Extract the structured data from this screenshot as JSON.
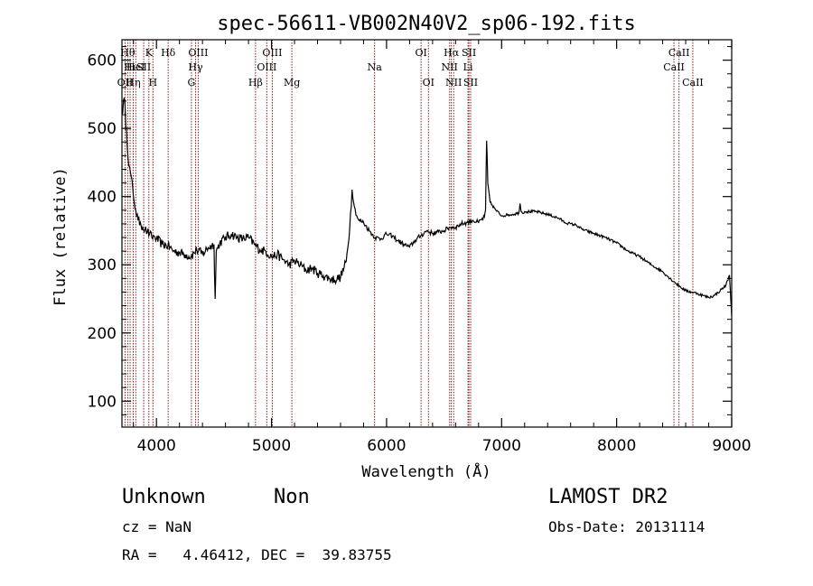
{
  "chart_data": {
    "type": "line",
    "title": "spec-56611-VB002N40V2_sp06-192.fits",
    "xlabel": "Wavelength (Å)",
    "ylabel": "Flux (relative)",
    "xlim": [
      3700,
      9000
    ],
    "ylim": [
      62,
      630
    ],
    "xticks": [
      4000,
      5000,
      6000,
      7000,
      8000,
      9000
    ],
    "yticks": [
      100,
      200,
      300,
      400,
      500,
      600
    ],
    "series": [
      {
        "x": [
          3700,
          3720,
          3740,
          3760,
          3780,
          3800,
          3820,
          3840,
          3860,
          3880,
          3900,
          3920,
          3940,
          3960,
          3980,
          4000,
          4050,
          4100,
          4150,
          4200,
          4250,
          4300,
          4350,
          4400,
          4450,
          4500,
          4510,
          4520,
          4550,
          4600,
          4650,
          4700,
          4750,
          4800,
          4850,
          4900,
          4950,
          5000,
          5050,
          5100,
          5150,
          5200,
          5250,
          5300,
          5350,
          5400,
          5450,
          5500,
          5550,
          5600,
          5650,
          5680,
          5700,
          5720,
          5740,
          5760,
          5800,
          5850,
          5900,
          5950,
          6000,
          6050,
          6100,
          6150,
          6200,
          6250,
          6300,
          6350,
          6400,
          6450,
          6500,
          6550,
          6600,
          6650,
          6700,
          6750,
          6800,
          6850,
          6860,
          6870,
          6880,
          6900,
          6950,
          7000,
          7050,
          7100,
          7150,
          7160,
          7170,
          7180,
          7200,
          7300,
          7400,
          7500,
          7550,
          7600,
          7650,
          7700,
          7800,
          7900,
          8000,
          8100,
          8200,
          8300,
          8400,
          8450,
          8500,
          8550,
          8600,
          8650,
          8700,
          8750,
          8800,
          8850,
          8900,
          8950,
          8980,
          9000
        ],
        "y": [
          520,
          545,
          495,
          445,
          430,
          400,
          380,
          365,
          362,
          355,
          352,
          348,
          345,
          340,
          342,
          338,
          330,
          328,
          320,
          318,
          315,
          312,
          322,
          316,
          325,
          330,
          250,
          320,
          332,
          340,
          345,
          340,
          338,
          340,
          330,
          322,
          320,
          312,
          315,
          308,
          300,
          306,
          300,
          292,
          295,
          288,
          284,
          280,
          278,
          282,
          305,
          355,
          410,
          385,
          372,
          365,
          362,
          350,
          340,
          338,
          345,
          342,
          335,
          330,
          326,
          336,
          343,
          350,
          346,
          348,
          350,
          355,
          355,
          360,
          362,
          365,
          362,
          370,
          380,
          482,
          420,
          392,
          380,
          372,
          373,
          374,
          376,
          390,
          378,
          376,
          378,
          378,
          374,
          368,
          362,
          360,
          358,
          352,
          346,
          340,
          332,
          320,
          312,
          300,
          290,
          282,
          275,
          268,
          262,
          260,
          258,
          255,
          252,
          255,
          262,
          270,
          285,
          225
        ]
      }
    ],
    "lines": [
      {
        "wl": 3727,
        "label": "OII",
        "row": 3
      },
      {
        "wl": 3750,
        "label": "Hθ",
        "row": 1
      },
      {
        "wl": 3771,
        "label": "Hι",
        "row": 2
      },
      {
        "wl": 3798,
        "label": "Hη",
        "row": 3
      },
      {
        "wl": 3820,
        "label": "HeI",
        "row": 2
      },
      {
        "wl": 3889,
        "label": "SII",
        "row": 2
      },
      {
        "wl": 3934,
        "label": "K",
        "row": 1
      },
      {
        "wl": 3969,
        "label": "H",
        "row": 3
      },
      {
        "wl": 4102,
        "label": "Hδ",
        "row": 1
      },
      {
        "wl": 4304,
        "label": "G",
        "row": 3
      },
      {
        "wl": 4340,
        "label": "Hγ",
        "row": 2
      },
      {
        "wl": 4363,
        "label": "OIII",
        "row": 1
      },
      {
        "wl": 4861,
        "label": "Hβ",
        "row": 3
      },
      {
        "wl": 4959,
        "label": "OIII",
        "row": 2
      },
      {
        "wl": 5007,
        "label": "OIII",
        "row": 1
      },
      {
        "wl": 5177,
        "label": "Mg",
        "row": 3
      },
      {
        "wl": 5896,
        "label": "Na",
        "row": 2
      },
      {
        "wl": 6300,
        "label": "OI",
        "row": 1
      },
      {
        "wl": 6364,
        "label": "OI",
        "row": 3
      },
      {
        "wl": 6548,
        "label": "NII",
        "row": 2
      },
      {
        "wl": 6563,
        "label": "Hα",
        "row": 1
      },
      {
        "wl": 6583,
        "label": "NII",
        "row": 3
      },
      {
        "wl": 6708,
        "label": "Li",
        "row": 2
      },
      {
        "wl": 6716,
        "label": "SII",
        "row": 1
      },
      {
        "wl": 6731,
        "label": "SII",
        "row": 3
      },
      {
        "wl": 8498,
        "label": "CaII",
        "row": 2
      },
      {
        "wl": 8542,
        "label": "CaII",
        "row": 1
      },
      {
        "wl": 8662,
        "label": "CaII",
        "row": 3
      }
    ]
  },
  "info": {
    "class_label": "Unknown",
    "subclass_label": "Non",
    "survey": "LAMOST DR2",
    "cz": "cz = NaN",
    "obs_date": "Obs-Date: 20131114",
    "coords": "RA =   4.46412, DEC =  39.83755"
  },
  "colors": {
    "spectrum": "#000000",
    "line_marker": "#8b1a1a",
    "axis": "#000000"
  }
}
